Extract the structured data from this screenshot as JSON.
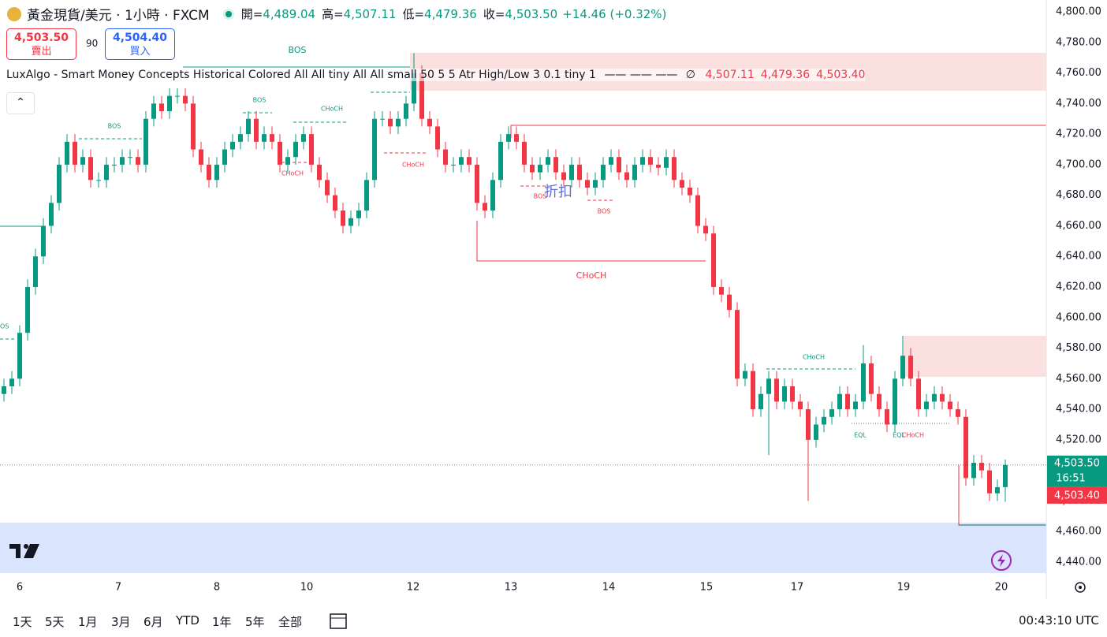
{
  "header": {
    "symbol": "黃金現貨/美元 · 1小時 · FXCM",
    "ohlc": [
      {
        "label": "開=",
        "value": "4,489.04"
      },
      {
        "label": "高=",
        "value": "4,507.11"
      },
      {
        "label": "低=",
        "value": "4,479.36"
      },
      {
        "label": "收=",
        "value": "4,503.50"
      }
    ],
    "change": "+14.46 (+0.32%)"
  },
  "trade": {
    "sell_price": "4,503.50",
    "sell_label": "賣出",
    "spread": "90",
    "buy_price": "4,504.40",
    "buy_label": "買入"
  },
  "indicator": {
    "name": "LuxAlgo - Smart Money Concepts Historical Colored All All tiny All All small 50 5 5 Atr High/Low 3 0.1 tiny 1",
    "symbol": "∅",
    "values": [
      "4,507.11",
      "4,479.36",
      "4,503.40"
    ]
  },
  "annotations": [
    "BOS",
    "BOS",
    "BOS",
    "CHoCH",
    "CHoCH",
    "CHoCH",
    "BOS",
    "BOS",
    "折扣",
    "CHoCH",
    "CHoCH",
    "EQL",
    "EQL",
    "CHoCH",
    "BOS"
  ],
  "price_tags": {
    "last": "4,503.50",
    "countdown": "16:51",
    "indicator_price": "4,503.40"
  },
  "toolbar": {
    "ranges": [
      "1天",
      "5天",
      "1月",
      "3月",
      "6月",
      "YTD",
      "1年",
      "5年",
      "全部"
    ],
    "clock": "00:43:10 UTC"
  },
  "chart_data": {
    "type": "candlestick",
    "up_color": "#089981",
    "down_color": "#f23645",
    "grid": false,
    "xlim": [
      0,
      132.7
    ],
    "xticks": [
      {
        "value": 2.5,
        "label": "6"
      },
      {
        "value": 15,
        "label": "7"
      },
      {
        "value": 27.5,
        "label": "8"
      },
      {
        "value": 38.9,
        "label": "10"
      },
      {
        "value": 52.4,
        "label": "12"
      },
      {
        "value": 64.8,
        "label": "13"
      },
      {
        "value": 77.2,
        "label": "14"
      },
      {
        "value": 89.6,
        "label": "15"
      },
      {
        "value": 101.1,
        "label": "17"
      },
      {
        "value": 114.6,
        "label": "19"
      },
      {
        "value": 127,
        "label": "20"
      }
    ],
    "ylim": [
      4440,
      4800
    ],
    "yticks": [
      {
        "value": 4440,
        "label": "4,440.00"
      },
      {
        "value": 4460,
        "label": "4,460.00"
      },
      {
        "value": 4480,
        "label": "4,480.00"
      },
      {
        "value": 4500,
        "label": "4,500.00"
      },
      {
        "value": 4520,
        "label": "4,520.00"
      },
      {
        "value": 4540,
        "label": "4,540.00"
      },
      {
        "value": 4560,
        "label": "4,560.00"
      },
      {
        "value": 4580,
        "label": "4,580.00"
      },
      {
        "value": 4600,
        "label": "4,600.00"
      },
      {
        "value": 4620,
        "label": "4,620.00"
      },
      {
        "value": 4640,
        "label": "4,640.00"
      },
      {
        "value": 4660,
        "label": "4,660.00"
      },
      {
        "value": 4680,
        "label": "4,680.00"
      },
      {
        "value": 4700,
        "label": "4,700.00"
      },
      {
        "value": 4720,
        "label": "4,720.00"
      },
      {
        "value": 4740,
        "label": "4,740.00"
      },
      {
        "value": 4760,
        "label": "4,760.00"
      },
      {
        "value": 4780,
        "label": "4,780.00"
      },
      {
        "value": 4800,
        "label": "4,800.00"
      }
    ],
    "open": [
      4550,
      4555,
      4560,
      4590,
      4620,
      4640,
      4660,
      4675,
      4700,
      4715,
      4700,
      4705,
      4690,
      4690,
      4700,
      4700,
      4705,
      4705,
      4700,
      4730,
      4740,
      4735,
      4745,
      4745,
      4740,
      4710,
      4700,
      4690,
      4700,
      4710,
      4715,
      4720,
      4730,
      4715,
      4720,
      4715,
      4700,
      4705,
      4715,
      4720,
      4700,
      4690,
      4680,
      4670,
      4660,
      4665,
      4670,
      4690,
      4730,
      4730,
      4725,
      4730,
      4740,
      4760,
      4730,
      4725,
      4710,
      4700,
      4700,
      4705,
      4700,
      4675,
      4670,
      4690,
      4715,
      4720,
      4715,
      4700,
      4695,
      4700,
      4705,
      4695,
      4690,
      4700,
      4690,
      4685,
      4690,
      4700,
      4705,
      4695,
      4690,
      4700,
      4705,
      4700,
      4698,
      4705,
      4690,
      4685,
      4680,
      4660,
      4655,
      4620,
      4615,
      4605,
      4560,
      4565,
      4540,
      4550,
      4560,
      4545,
      4555,
      4545,
      4540,
      4520,
      4530,
      4535,
      4540,
      4550,
      4540,
      4545,
      4570,
      4550,
      4540,
      4530,
      4560,
      4575,
      4560,
      4540,
      4545,
      4550,
      4545,
      4540,
      4535,
      4495,
      4505,
      4500,
      4485,
      4489.04
    ],
    "high": [
      4560,
      4565,
      4595,
      4625,
      4645,
      4665,
      4680,
      4705,
      4720,
      4720,
      4710,
      4710,
      4695,
      4705,
      4705,
      4710,
      4710,
      4710,
      4735,
      4745,
      4745,
      4750,
      4750,
      4750,
      4745,
      4715,
      4705,
      4705,
      4715,
      4720,
      4725,
      4735,
      4735,
      4725,
      4725,
      4720,
      4710,
      4720,
      4725,
      4725,
      4705,
      4695,
      4685,
      4675,
      4670,
      4675,
      4695,
      4735,
      4735,
      4735,
      4735,
      4745,
      4773,
      4765,
      4735,
      4730,
      4715,
      4705,
      4710,
      4710,
      4705,
      4680,
      4695,
      4720,
      4725,
      4725,
      4720,
      4705,
      4705,
      4710,
      4710,
      4700,
      4705,
      4705,
      4695,
      4695,
      4705,
      4710,
      4710,
      4700,
      4705,
      4710,
      4710,
      4705,
      4710,
      4710,
      4695,
      4690,
      4685,
      4665,
      4660,
      4625,
      4620,
      4610,
      4570,
      4570,
      4555,
      4565,
      4565,
      4560,
      4560,
      4550,
      4545,
      4535,
      4540,
      4545,
      4555,
      4555,
      4550,
      4582,
      4575,
      4555,
      4545,
      4565,
      4588,
      4580,
      4565,
      4550,
      4555,
      4555,
      4550,
      4545,
      4540,
      4510,
      4510,
      4505,
      4494,
      4507.11
    ],
    "low": [
      4545,
      4550,
      4555,
      4585,
      4615,
      4635,
      4655,
      4670,
      4695,
      4695,
      4695,
      4685,
      4685,
      4685,
      4695,
      4695,
      4700,
      4695,
      4695,
      4725,
      4730,
      4730,
      4740,
      4735,
      4705,
      4695,
      4685,
      4685,
      4695,
      4705,
      4710,
      4715,
      4710,
      4710,
      4710,
      4695,
      4695,
      4700,
      4710,
      4695,
      4685,
      4675,
      4665,
      4655,
      4655,
      4660,
      4665,
      4685,
      4725,
      4720,
      4720,
      4725,
      4735,
      4725,
      4720,
      4705,
      4695,
      4695,
      4695,
      4695,
      4670,
      4665,
      4665,
      4685,
      4710,
      4710,
      4695,
      4690,
      4690,
      4695,
      4690,
      4685,
      4685,
      4685,
      4680,
      4680,
      4685,
      4695,
      4690,
      4685,
      4685,
      4695,
      4695,
      4693,
      4693,
      4685,
      4680,
      4675,
      4655,
      4650,
      4615,
      4610,
      4600,
      4555,
      4555,
      4535,
      4535,
      4510,
      4540,
      4540,
      4540,
      4535,
      4480,
      4515,
      4525,
      4530,
      4535,
      4535,
      4535,
      4540,
      4545,
      4535,
      4525,
      4525,
      4555,
      4555,
      4535,
      4535,
      4540,
      4540,
      4535,
      4530,
      4490,
      4490,
      4495,
      4480,
      4480,
      4479.36
    ],
    "close": [
      4555,
      4560,
      4590,
      4620,
      4640,
      4660,
      4675,
      4700,
      4715,
      4700,
      4705,
      4690,
      4690,
      4700,
      4700,
      4705,
      4705,
      4700,
      4730,
      4740,
      4735,
      4745,
      4745,
      4740,
      4710,
      4700,
      4690,
      4700,
      4710,
      4715,
      4720,
      4730,
      4715,
      4720,
      4715,
      4700,
      4705,
      4715,
      4720,
      4700,
      4690,
      4680,
      4670,
      4660,
      4665,
      4670,
      4690,
      4730,
      4730,
      4725,
      4730,
      4740,
      4760,
      4730,
      4725,
      4710,
      4700,
      4700,
      4705,
      4700,
      4675,
      4670,
      4690,
      4715,
      4720,
      4715,
      4700,
      4695,
      4700,
      4705,
      4695,
      4690,
      4700,
      4690,
      4685,
      4690,
      4700,
      4705,
      4695,
      4690,
      4700,
      4705,
      4700,
      4698,
      4705,
      4690,
      4685,
      4680,
      4660,
      4655,
      4620,
      4615,
      4605,
      4560,
      4565,
      4540,
      4550,
      4560,
      4545,
      4555,
      4545,
      4540,
      4520,
      4530,
      4535,
      4540,
      4550,
      4540,
      4545,
      4570,
      4550,
      4540,
      4530,
      4560,
      4575,
      4560,
      4540,
      4545,
      4550,
      4545,
      4540,
      4535,
      4495,
      4505,
      4500,
      4485,
      4489.04,
      4503.5
    ]
  }
}
